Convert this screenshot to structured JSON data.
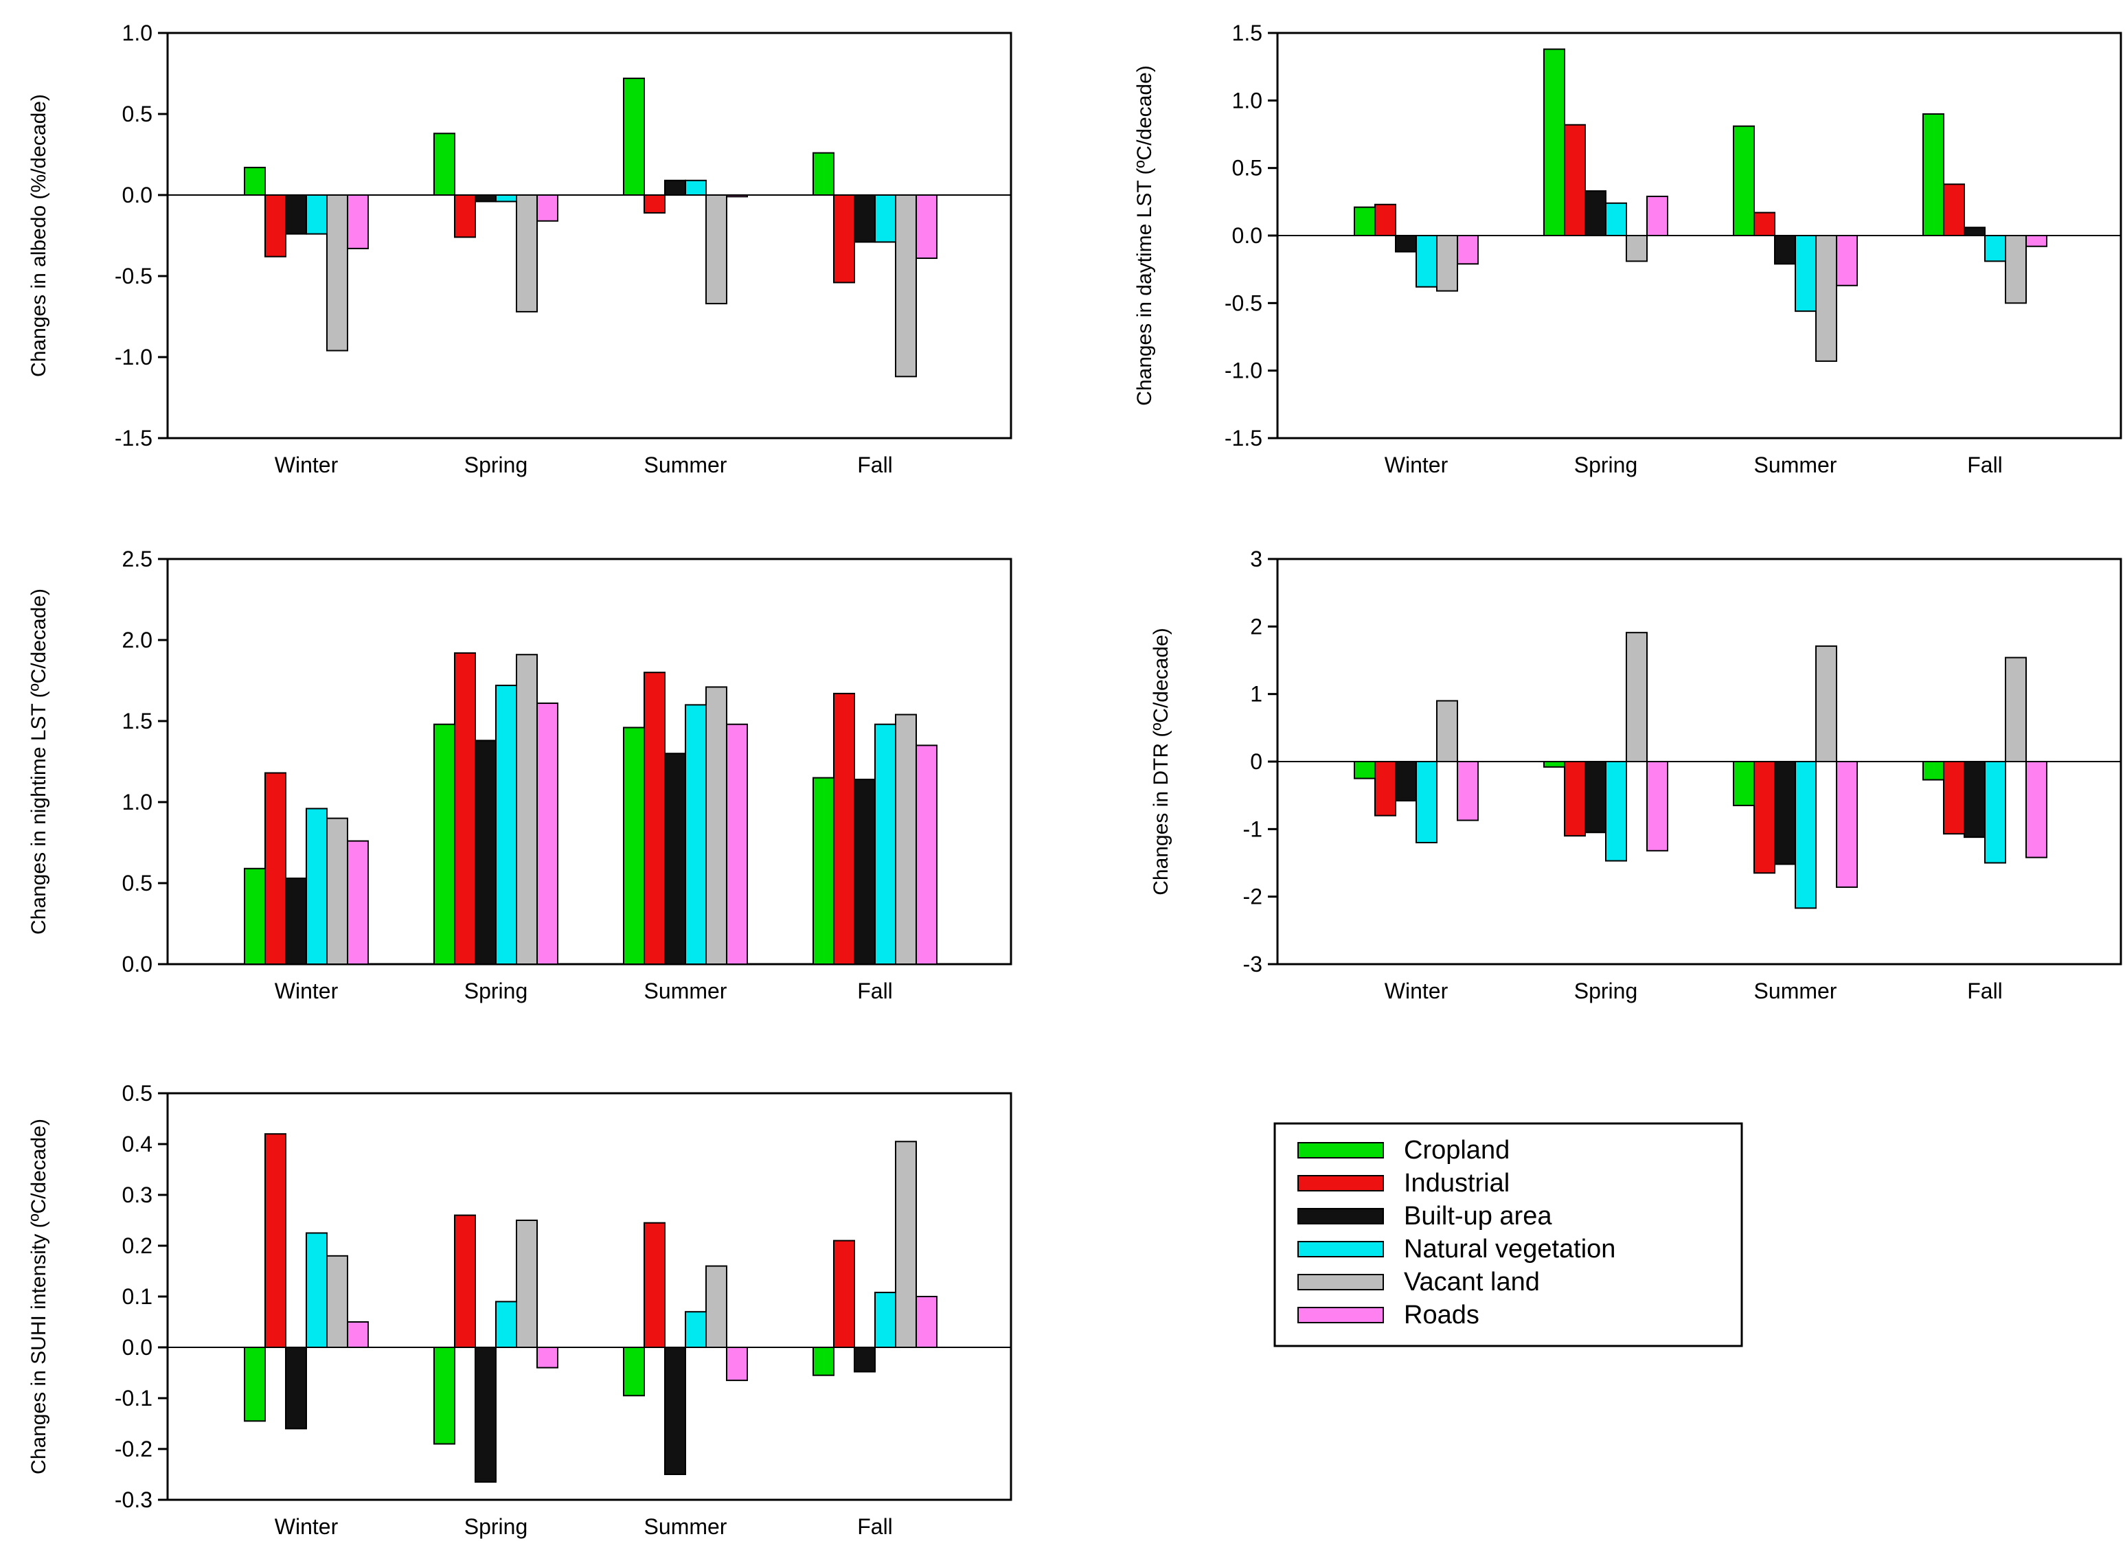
{
  "chart_data": [
    {
      "type": "bar",
      "title": "",
      "xlabel": "",
      "ylabel": "Changes in albedo (%/decade)",
      "ylim": [
        -1.5,
        1.0
      ],
      "yticks": [
        1.0,
        0.5,
        0.0,
        -0.5,
        -1.0,
        -1.5
      ],
      "ytick_labels": [
        "1.0",
        "0.5",
        "0.0",
        "-0.5",
        "-1.0",
        "-1.5"
      ],
      "categories": [
        "Winter",
        "Spring",
        "Summer",
        "Fall"
      ],
      "series": [
        {
          "name": "Cropland",
          "values": [
            0.17,
            0.38,
            0.72,
            0.26
          ]
        },
        {
          "name": "Industrial",
          "values": [
            -0.38,
            -0.26,
            -0.11,
            -0.54
          ]
        },
        {
          "name": "Built-up area",
          "values": [
            -0.24,
            -0.04,
            0.09,
            -0.29
          ]
        },
        {
          "name": "Natural vegetation",
          "values": [
            -0.24,
            -0.04,
            0.09,
            -0.29
          ]
        },
        {
          "name": "Vacant land",
          "values": [
            -0.96,
            -0.72,
            -0.67,
            -1.12
          ]
        },
        {
          "name": "Roads",
          "values": [
            -0.33,
            -0.16,
            -0.01,
            -0.39
          ]
        }
      ]
    },
    {
      "type": "bar",
      "title": "",
      "xlabel": "",
      "ylabel": "Changes in daytime LST (ºC/decade)",
      "ylim": [
        -1.5,
        1.5
      ],
      "yticks": [
        1.5,
        1.0,
        0.5,
        0.0,
        -0.5,
        -1.0,
        -1.5
      ],
      "ytick_labels": [
        "1.5",
        "1.0",
        "0.5",
        "0.0",
        "-0.5",
        "-1.0",
        "-1.5"
      ],
      "categories": [
        "Winter",
        "Spring",
        "Summer",
        "Fall"
      ],
      "series": [
        {
          "name": "Cropland",
          "values": [
            0.21,
            1.38,
            0.81,
            0.9
          ]
        },
        {
          "name": "Industrial",
          "values": [
            0.23,
            0.82,
            0.17,
            0.38
          ]
        },
        {
          "name": "Built-up area",
          "values": [
            -0.12,
            0.33,
            -0.21,
            0.06
          ]
        },
        {
          "name": "Natural vegetation",
          "values": [
            -0.38,
            0.24,
            -0.56,
            -0.19
          ]
        },
        {
          "name": "Vacant land",
          "values": [
            -0.41,
            -0.19,
            -0.93,
            -0.5
          ]
        },
        {
          "name": "Roads",
          "values": [
            -0.21,
            0.29,
            -0.37,
            -0.08
          ]
        }
      ]
    },
    {
      "type": "bar",
      "title": "",
      "xlabel": "",
      "ylabel": "Changes in nightime LST (ºC/decade)",
      "ylim": [
        0.0,
        2.5
      ],
      "yticks": [
        2.5,
        2.0,
        1.5,
        1.0,
        0.5,
        0.0
      ],
      "ytick_labels": [
        "2.5",
        "2.0",
        "1.5",
        "1.0",
        "0.5",
        "0.0"
      ],
      "categories": [
        "Winter",
        "Spring",
        "Summer",
        "Fall"
      ],
      "series": [
        {
          "name": "Cropland",
          "values": [
            0.59,
            1.48,
            1.46,
            1.15
          ]
        },
        {
          "name": "Industrial",
          "values": [
            1.18,
            1.92,
            1.8,
            1.67
          ]
        },
        {
          "name": "Built-up area",
          "values": [
            0.53,
            1.38,
            1.3,
            1.14
          ]
        },
        {
          "name": "Natural vegetation",
          "values": [
            0.96,
            1.72,
            1.6,
            1.48
          ]
        },
        {
          "name": "Vacant land",
          "values": [
            0.9,
            1.91,
            1.71,
            1.54
          ]
        },
        {
          "name": "Roads",
          "values": [
            0.76,
            1.61,
            1.48,
            1.35
          ]
        }
      ]
    },
    {
      "type": "bar",
      "title": "",
      "xlabel": "",
      "ylabel": "Changes in DTR (ºC/decade)",
      "ylim": [
        -3,
        3
      ],
      "yticks": [
        3,
        2,
        1,
        0,
        -1,
        -2,
        -3
      ],
      "ytick_labels": [
        "3",
        "2",
        "1",
        "0",
        "-1",
        "-2",
        "-3"
      ],
      "categories": [
        "Winter",
        "Spring",
        "Summer",
        "Fall"
      ],
      "series": [
        {
          "name": "Cropland",
          "values": [
            -0.25,
            -0.08,
            -0.65,
            -0.27
          ]
        },
        {
          "name": "Industrial",
          "values": [
            -0.8,
            -1.1,
            -1.65,
            -1.07
          ]
        },
        {
          "name": "Built-up area",
          "values": [
            -0.58,
            -1.05,
            -1.52,
            -1.12
          ]
        },
        {
          "name": "Natural vegetation",
          "values": [
            -1.2,
            -1.47,
            -2.17,
            -1.5
          ]
        },
        {
          "name": "Vacant land",
          "values": [
            0.9,
            1.91,
            1.71,
            1.54
          ]
        },
        {
          "name": "Roads",
          "values": [
            -0.87,
            -1.32,
            -1.86,
            -1.42
          ]
        }
      ]
    },
    {
      "type": "bar",
      "title": "",
      "xlabel": "",
      "ylabel": "Changes in SUHI intensity (ºC/decade)",
      "ylim": [
        -0.3,
        0.5
      ],
      "yticks": [
        0.5,
        0.4,
        0.3,
        0.2,
        0.1,
        0.0,
        -0.1,
        -0.2,
        -0.3
      ],
      "ytick_labels": [
        "0.5",
        "0.4",
        "0.3",
        "0.2",
        "0.1",
        "0.0",
        "-0.1",
        "-0.2",
        "-0.3"
      ],
      "categories": [
        "Winter",
        "Spring",
        "Summer",
        "Fall"
      ],
      "series": [
        {
          "name": "Cropland",
          "values": [
            -0.145,
            -0.19,
            -0.095,
            -0.055
          ]
        },
        {
          "name": "Industrial",
          "values": [
            0.42,
            0.26,
            0.245,
            0.21
          ]
        },
        {
          "name": "Built-up area",
          "values": [
            -0.16,
            -0.265,
            -0.25,
            -0.048
          ]
        },
        {
          "name": "Natural vegetation",
          "values": [
            0.225,
            0.09,
            0.07,
            0.108
          ]
        },
        {
          "name": "Vacant land",
          "values": [
            0.18,
            0.25,
            0.16,
            0.405
          ]
        },
        {
          "name": "Roads",
          "values": [
            0.05,
            -0.04,
            -0.065,
            0.1
          ]
        }
      ]
    }
  ],
  "legend": {
    "entries": [
      "Cropland",
      "Industrial",
      "Built-up area",
      "Natural vegetation",
      "Vacant land",
      "Roads"
    ]
  },
  "colors": {
    "Cropland": "#00dd00",
    "Industrial": "#ee1111",
    "Built-up area": "#111111",
    "Natural vegetation": "#00e8f0",
    "Vacant land": "#bdbdbd",
    "Roads": "#ff80f0"
  }
}
